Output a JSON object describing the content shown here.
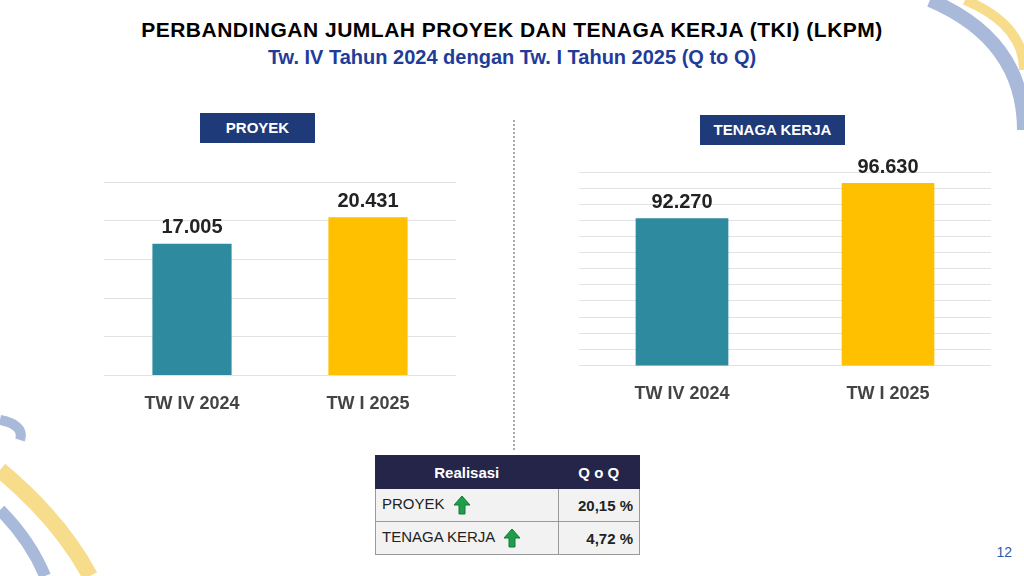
{
  "title": "PERBANDINGAN JUMLAH PROYEK DAN TENAGA KERJA (TKI) (LKPM)",
  "subtitle": "Tw. IV Tahun 2024 dengan Tw. I Tahun 2025 (Q to Q)",
  "chart_data": [
    {
      "type": "bar",
      "title": "PROYEK",
      "categories": [
        "TW IV 2024",
        "TW I 2025"
      ],
      "values": [
        17005,
        20431
      ],
      "value_labels": [
        "17.005",
        "20.431"
      ],
      "colors": [
        "#2e8a9e",
        "#ffc000"
      ],
      "ylim": [
        0,
        25000
      ],
      "yticks": [
        0,
        5000,
        10000,
        15000,
        20000,
        25000
      ],
      "grid": true,
      "data_labels": true,
      "tick_labels": "x"
    },
    {
      "type": "bar",
      "title": "TENAGA KERJA",
      "categories": [
        "TW IV 2024",
        "TW I 2025"
      ],
      "values": [
        92270,
        96630
      ],
      "value_labels": [
        "92.270",
        "96.630"
      ],
      "colors": [
        "#2e8a9e",
        "#ffc000"
      ],
      "ylim": [
        74000,
        98000
      ],
      "yticks": [
        74000,
        76000,
        78000,
        80000,
        82000,
        84000,
        86000,
        88000,
        90000,
        92000,
        94000,
        96000,
        98000
      ],
      "grid": true,
      "data_labels": true,
      "tick_labels": "x"
    }
  ],
  "table": {
    "header": [
      "Realisasi",
      "Q o Q"
    ],
    "rows": [
      [
        "PROYEK",
        "20,15 %"
      ],
      [
        "TENAGA KERJA",
        "4,72 %"
      ]
    ]
  },
  "page_number": 12
}
